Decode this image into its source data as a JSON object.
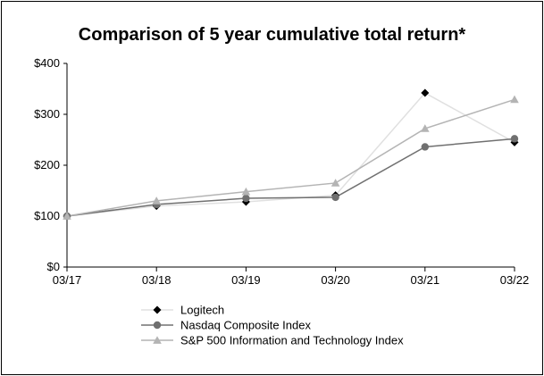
{
  "chart_data": {
    "type": "line",
    "title": "Comparison of 5 year cumulative total return*",
    "xlabel": "",
    "ylabel": "",
    "categories": [
      "03/17",
      "03/18",
      "03/19",
      "03/20",
      "03/21",
      "03/22"
    ],
    "ylim": [
      0,
      400
    ],
    "yticks": [
      0,
      100,
      200,
      300,
      400
    ],
    "ytick_labels": [
      "$0",
      "$100",
      "$200",
      "$300",
      "$400"
    ],
    "grid": false,
    "legend_position": "bottom",
    "series": [
      {
        "name": "Logitech",
        "values": [
          100,
          120,
          128,
          141,
          342,
          245
        ],
        "color": "#000000",
        "line_color": "#e0e0e0",
        "marker": "diamond"
      },
      {
        "name": "Nasdaq Composite Index",
        "values": [
          100,
          123,
          135,
          137,
          236,
          252
        ],
        "color": "#707070",
        "line_color": "#707070",
        "marker": "circle"
      },
      {
        "name": "S&P 500 Information and Technology Index",
        "values": [
          100,
          130,
          148,
          165,
          272,
          329
        ],
        "color": "#b4b4b4",
        "line_color": "#b4b4b4",
        "marker": "triangle"
      }
    ]
  }
}
